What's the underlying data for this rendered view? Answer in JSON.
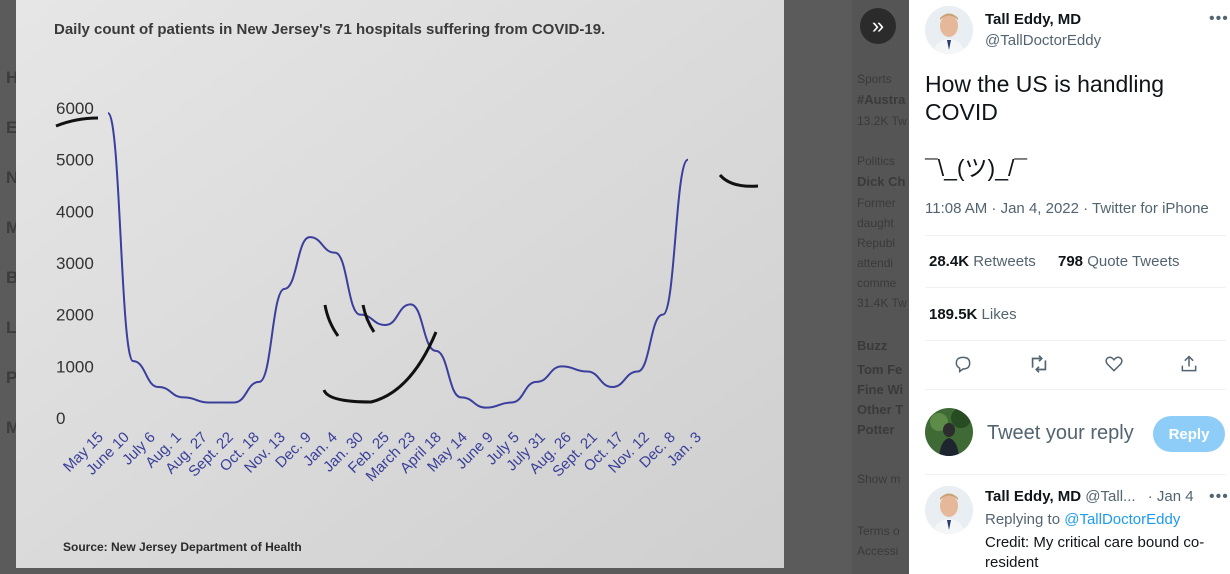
{
  "photo": {
    "title": "Daily count of patients in New Jersey's 71 hospitals suffering from COVID-19.",
    "source": "Source: New Jersey Department of Health",
    "y_ticks": [
      "6000",
      "5000",
      "4000",
      "3000",
      "2000",
      "1000",
      "0"
    ],
    "x_ticks": [
      "May 15",
      "June 10",
      "July 6",
      "Aug. 1",
      "Aug. 27",
      "Sept. 22",
      "Oct. 18",
      "Nov. 13",
      "Dec. 9",
      "Jan. 4",
      "Jan. 30",
      "Feb. 25",
      "March 23",
      "April 18",
      "May 14",
      "June 9",
      "July 5",
      "July 31",
      "Aug. 26",
      "Sept. 21",
      "Oct. 17",
      "Nov. 12",
      "Dec. 8",
      "Jan. 3"
    ],
    "line_color": "#3b3f9c"
  },
  "chart_data": {
    "type": "line",
    "title": "Daily count of patients in New Jersey's 71 hospitals suffering from COVID-19.",
    "x": [
      "May 15",
      "June 10",
      "July 6",
      "Aug. 1",
      "Aug. 27",
      "Sept. 22",
      "Oct. 18",
      "Nov. 13",
      "Dec. 9",
      "Jan. 4",
      "Jan. 30",
      "Feb. 25",
      "March 23",
      "April 18",
      "May 14",
      "June 9",
      "July 5",
      "July 31",
      "Aug. 26",
      "Sept. 21",
      "Oct. 17",
      "Nov. 12",
      "Dec. 8",
      "Jan. 3"
    ],
    "values": [
      5900,
      1100,
      600,
      400,
      300,
      300,
      700,
      2500,
      3500,
      3200,
      2000,
      1800,
      2200,
      1300,
      400,
      200,
      300,
      700,
      1000,
      900,
      600,
      900,
      2000,
      5000
    ],
    "ylim": [
      0,
      6000
    ]
  },
  "expand_icon": "double-chevron-right-icon",
  "tweet": {
    "author_name": "Tall Eddy, MD",
    "author_handle": "@TallDoctorEddy",
    "text": "How the US is handling\nCOVID\n\n¯\\_(ツ)_/¯",
    "timestamp": "11:08 AM · Jan 4, 2022 · Twitter for iPhone",
    "retweets_count": "28.4K",
    "retweets_label": "Retweets",
    "quotes_count": "798",
    "quotes_label": "Quote Tweets",
    "likes_count": "189.5K",
    "likes_label": "Likes",
    "reply_placeholder": "Tweet your reply",
    "reply_button": "Reply"
  },
  "reply": {
    "author_name": "Tall Eddy, MD",
    "author_handle": "@Tall...",
    "date": "· Jan 4",
    "replying_prefix": "Replying to",
    "replying_to": "@TallDoctorEddy",
    "text": "Credit: My critical care bound co-resident"
  },
  "background_trends": {
    "lines": [
      "Sports",
      "#Austra",
      "13.2K Tw",
      "Politics",
      "Dick Ch",
      "Former",
      "daught",
      "Republ",
      "attendi",
      "comme",
      "31.4K Tw",
      "Buzz",
      "Tom Fe",
      "Fine Wi",
      "Other T",
      "Potter",
      "Show m",
      "Terms o",
      "Accessi"
    ]
  },
  "background_nav": {
    "letters": [
      "H",
      "E",
      "N",
      "M",
      "B",
      "L",
      "P",
      "M"
    ]
  }
}
